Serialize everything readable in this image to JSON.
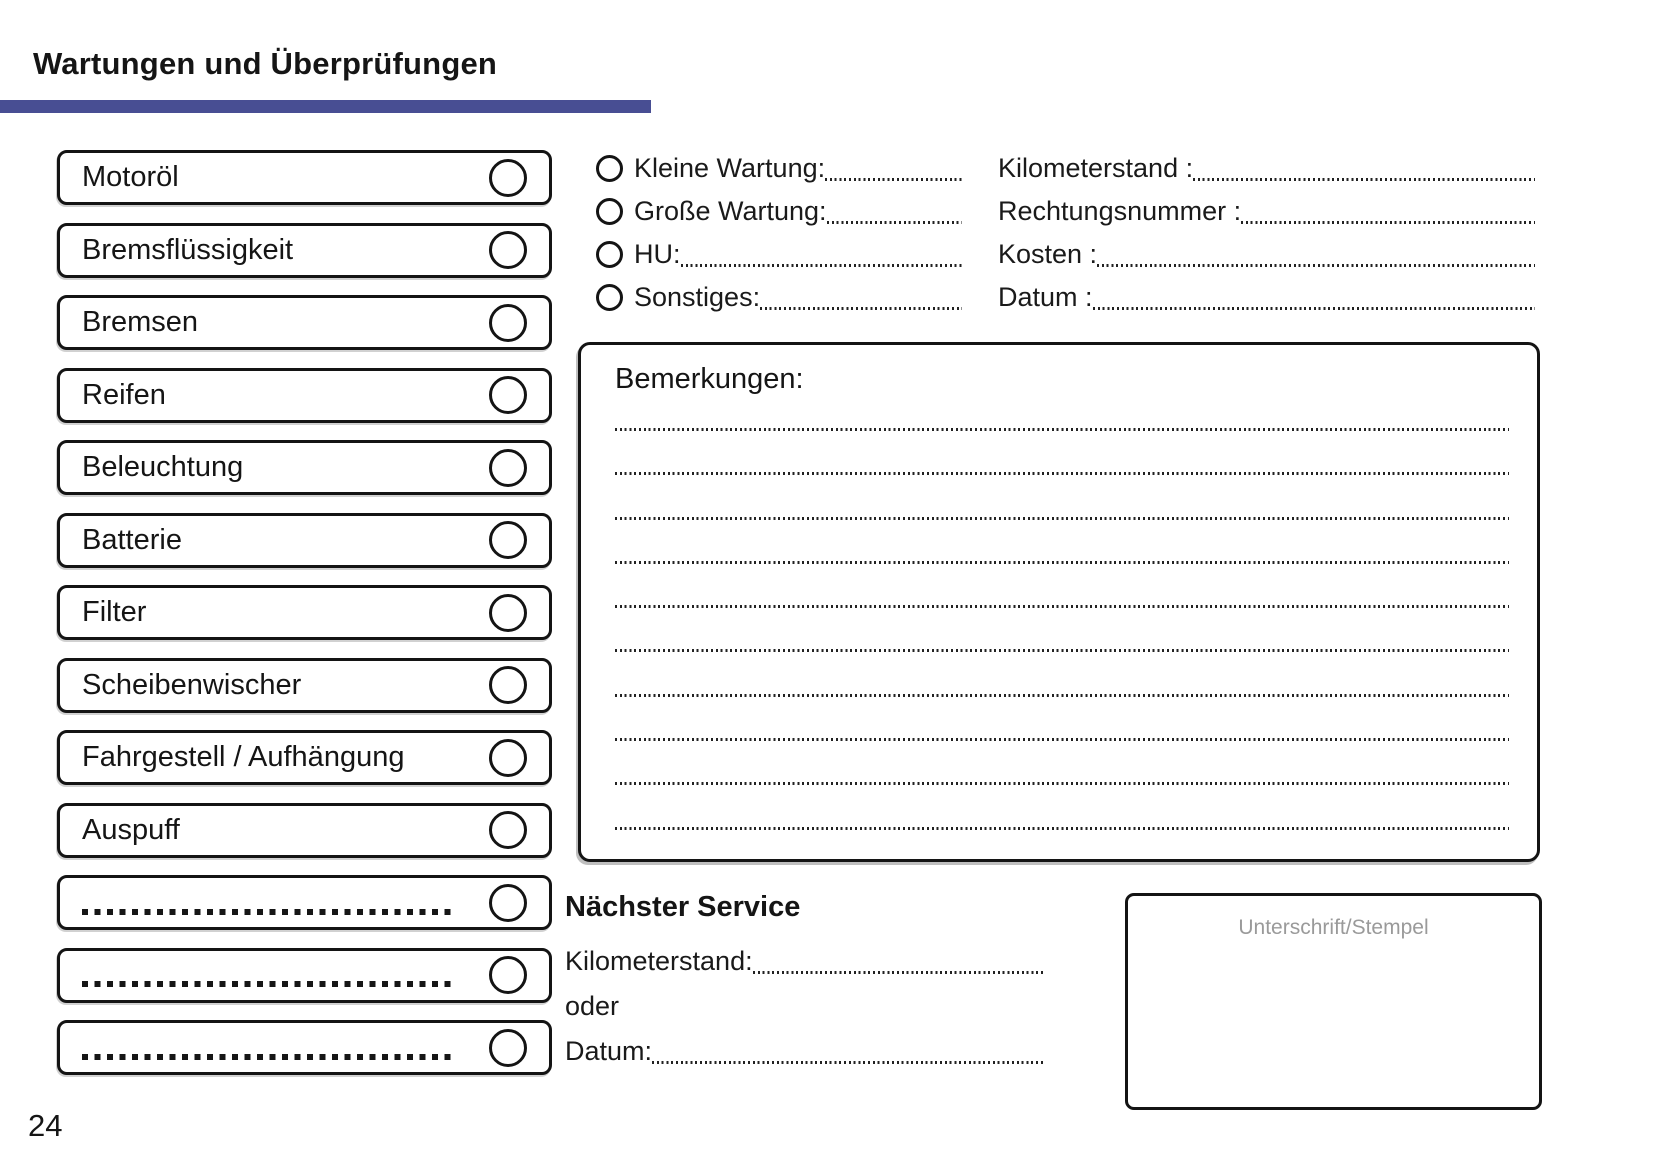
{
  "page": {
    "title": "Wartungen und Überprüfungen",
    "page_number": "24",
    "accent_color": "#484e93",
    "ink_color": "#1a1a1a",
    "muted_color": "#9a9a9a"
  },
  "checklist": {
    "items": [
      {
        "label": "Motoröl",
        "type": "labeled"
      },
      {
        "label": "Bremsflüssigkeit",
        "type": "labeled"
      },
      {
        "label": "Bremsen",
        "type": "labeled"
      },
      {
        "label": "Reifen",
        "type": "labeled"
      },
      {
        "label": "Beleuchtung",
        "type": "labeled"
      },
      {
        "label": "Batterie",
        "type": "labeled"
      },
      {
        "label": "Filter",
        "type": "labeled"
      },
      {
        "label": "Scheibenwischer",
        "type": "labeled"
      },
      {
        "label": "Fahrgestell / Aufhängung",
        "type": "labeled"
      },
      {
        "label": "Auspuff",
        "type": "labeled"
      },
      {
        "label": "",
        "type": "blank-write-in"
      },
      {
        "label": "",
        "type": "blank-write-in"
      },
      {
        "label": "",
        "type": "blank-write-in"
      }
    ]
  },
  "service_type": {
    "options": [
      {
        "label": "Kleine Wartung:"
      },
      {
        "label": "Große Wartung:"
      },
      {
        "label": "HU:"
      },
      {
        "label": "Sonstiges:"
      }
    ]
  },
  "invoice_fields": [
    {
      "label": "Kilometerstand :"
    },
    {
      "label": "Rechtungsnummer :"
    },
    {
      "label": "Kosten :"
    },
    {
      "label": "Datum :"
    }
  ],
  "remarks": {
    "title": "Bemerkungen:",
    "line_count": 10
  },
  "next_service": {
    "title": "Nächster Service",
    "fields": [
      {
        "label": "Kilometerstand:",
        "has_line": true
      },
      {
        "label": "oder",
        "has_line": false
      },
      {
        "label": "Datum:",
        "has_line": true
      }
    ]
  },
  "signature": {
    "label": "Unterschrift/Stempel"
  }
}
